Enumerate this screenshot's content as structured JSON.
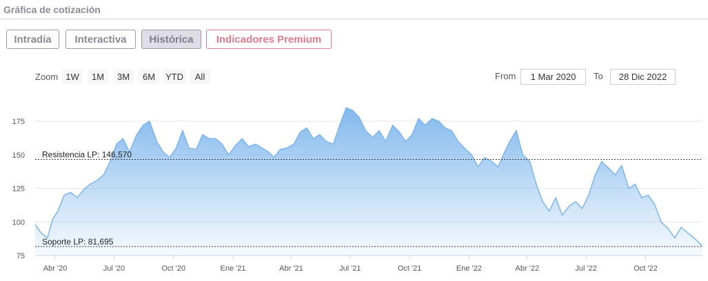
{
  "header": {
    "title": "Gráfica de cotización"
  },
  "tabs": [
    {
      "label": "Intradía",
      "active": false
    },
    {
      "label": "Interactiva",
      "active": false
    },
    {
      "label": "Histórica",
      "active": true
    },
    {
      "label": "Indicadores Premium",
      "active": false
    }
  ],
  "zoom": {
    "label": "Zoom",
    "buttons": [
      "1W",
      "1M",
      "3M",
      "6M",
      "YTD",
      "All"
    ]
  },
  "range": {
    "from_label": "From",
    "from_value": "1 Mar 2020",
    "to_label": "To",
    "to_value": "28 Dic 2022"
  },
  "colors": {
    "line": "#7cb5ec",
    "premium": "#df7c8c",
    "grid": "#e6e6e6"
  },
  "chart_data": {
    "type": "area",
    "xlabel": "",
    "ylabel": "",
    "ylim": [
      75,
      195
    ],
    "xlim": [
      "2020-03-01",
      "2022-12-28"
    ],
    "y_ticks": [
      75,
      100,
      125,
      150,
      175
    ],
    "x_ticks": [
      {
        "date": "2020-04-01",
        "label": "Abr '20"
      },
      {
        "date": "2020-07-01",
        "label": "Jul '20"
      },
      {
        "date": "2020-10-01",
        "label": "Oct '20"
      },
      {
        "date": "2021-01-01",
        "label": "Ene '21"
      },
      {
        "date": "2021-04-01",
        "label": "Abr '21"
      },
      {
        "date": "2021-07-01",
        "label": "Jul '21"
      },
      {
        "date": "2021-10-01",
        "label": "Oct '21"
      },
      {
        "date": "2022-01-01",
        "label": "Ene '22"
      },
      {
        "date": "2022-04-01",
        "label": "Abr '22"
      },
      {
        "date": "2022-07-01",
        "label": "Jul '22"
      },
      {
        "date": "2022-10-01",
        "label": "Oct '22"
      }
    ],
    "annotations": [
      {
        "label": "Resistencia LP: 146,570",
        "value": 146.57
      },
      {
        "label": "Soporte LP: 81,695",
        "value": 81.695
      }
    ],
    "series": [
      {
        "x": [
          "2020-03-01",
          "2020-03-10",
          "2020-03-20",
          "2020-03-28",
          "2020-04-05",
          "2020-04-15",
          "2020-04-25",
          "2020-05-05",
          "2020-05-15",
          "2020-05-25",
          "2020-06-05",
          "2020-06-15",
          "2020-06-25",
          "2020-07-05",
          "2020-07-15",
          "2020-07-25",
          "2020-08-05",
          "2020-08-15",
          "2020-08-25",
          "2020-09-05",
          "2020-09-15",
          "2020-09-25",
          "2020-10-05",
          "2020-10-15",
          "2020-10-25",
          "2020-11-05",
          "2020-11-15",
          "2020-11-25",
          "2020-12-05",
          "2020-12-15",
          "2020-12-25",
          "2021-01-05",
          "2021-01-15",
          "2021-01-25",
          "2021-02-05",
          "2021-02-15",
          "2021-02-25",
          "2021-03-05",
          "2021-03-15",
          "2021-03-25",
          "2021-04-05",
          "2021-04-15",
          "2021-04-25",
          "2021-05-05",
          "2021-05-15",
          "2021-05-25",
          "2021-06-05",
          "2021-06-15",
          "2021-06-25",
          "2021-07-05",
          "2021-07-15",
          "2021-07-25",
          "2021-08-05",
          "2021-08-15",
          "2021-08-25",
          "2021-09-05",
          "2021-09-15",
          "2021-09-25",
          "2021-10-05",
          "2021-10-15",
          "2021-10-25",
          "2021-11-05",
          "2021-11-15",
          "2021-11-25",
          "2021-12-05",
          "2021-12-15",
          "2021-12-25",
          "2022-01-05",
          "2022-01-15",
          "2022-01-25",
          "2022-02-05",
          "2022-02-15",
          "2022-02-25",
          "2022-03-05",
          "2022-03-15",
          "2022-03-25",
          "2022-04-05",
          "2022-04-15",
          "2022-04-25",
          "2022-05-05",
          "2022-05-15",
          "2022-05-25",
          "2022-06-05",
          "2022-06-15",
          "2022-06-25",
          "2022-07-05",
          "2022-07-15",
          "2022-07-25",
          "2022-08-05",
          "2022-08-15",
          "2022-08-25",
          "2022-09-05",
          "2022-09-15",
          "2022-09-25",
          "2022-10-05",
          "2022-10-15",
          "2022-10-25",
          "2022-11-05",
          "2022-11-15",
          "2022-11-25",
          "2022-12-05",
          "2022-12-15",
          "2022-12-28"
        ],
        "y": [
          98,
          92,
          88,
          102,
          108,
          120,
          122,
          118,
          124,
          128,
          131,
          135,
          145,
          158,
          162,
          152,
          165,
          172,
          175,
          160,
          152,
          148,
          155,
          168,
          155,
          154,
          165,
          162,
          162,
          158,
          150,
          157,
          162,
          156,
          158,
          155,
          152,
          148,
          154,
          155,
          158,
          167,
          170,
          162,
          165,
          160,
          158,
          172,
          185,
          183,
          178,
          168,
          163,
          168,
          160,
          172,
          167,
          160,
          165,
          177,
          172,
          177,
          175,
          170,
          168,
          160,
          155,
          150,
          141,
          148,
          145,
          141,
          152,
          160,
          168,
          150,
          145,
          128,
          115,
          108,
          118,
          105,
          112,
          115,
          110,
          120,
          135,
          145,
          140,
          135,
          142,
          125,
          128,
          118,
          120,
          113,
          100,
          95,
          88,
          96,
          92,
          88,
          82
        ]
      }
    ]
  }
}
